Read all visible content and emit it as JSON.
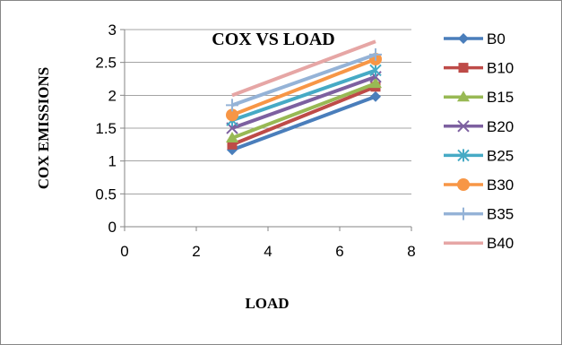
{
  "chart_data": {
    "type": "line",
    "title": "COX VS LOAD",
    "xlabel": "LOAD",
    "ylabel": "COX EMISSIONS",
    "xlim": [
      0,
      8
    ],
    "ylim": [
      0,
      3
    ],
    "xticks": [
      0,
      2,
      4,
      6,
      8
    ],
    "yticks": [
      0,
      0.5,
      1,
      1.5,
      2,
      2.5,
      3
    ],
    "xtick_labels": [
      "0",
      "2",
      "4",
      "6",
      "8"
    ],
    "ytick_labels": [
      "0",
      "0.5",
      "1",
      "1.5",
      "2",
      "2.5",
      "3"
    ],
    "grid": "horizontal",
    "legend_position": "right",
    "x": [
      3,
      7
    ],
    "series": [
      {
        "name": "B0",
        "values": [
          1.17,
          1.98
        ],
        "color": "#4A7EBB",
        "marker": "diamond"
      },
      {
        "name": "B10",
        "values": [
          1.25,
          2.13
        ],
        "color": "#BE4B48",
        "marker": "square"
      },
      {
        "name": "B15",
        "values": [
          1.35,
          2.18
        ],
        "color": "#98B954",
        "marker": "triangle"
      },
      {
        "name": "B20",
        "values": [
          1.5,
          2.28
        ],
        "color": "#7D60A0",
        "marker": "x"
      },
      {
        "name": "B25",
        "values": [
          1.62,
          2.38
        ],
        "color": "#46AAC5",
        "marker": "star"
      },
      {
        "name": "B30",
        "values": [
          1.7,
          2.55
        ],
        "color": "#F79646",
        "marker": "circle"
      },
      {
        "name": "B35",
        "values": [
          1.85,
          2.62
        ],
        "color": "#95B3D7",
        "marker": "plus"
      },
      {
        "name": "B40",
        "values": [
          2.0,
          2.82
        ],
        "color": "#E6A6A5",
        "marker": "none"
      }
    ]
  }
}
